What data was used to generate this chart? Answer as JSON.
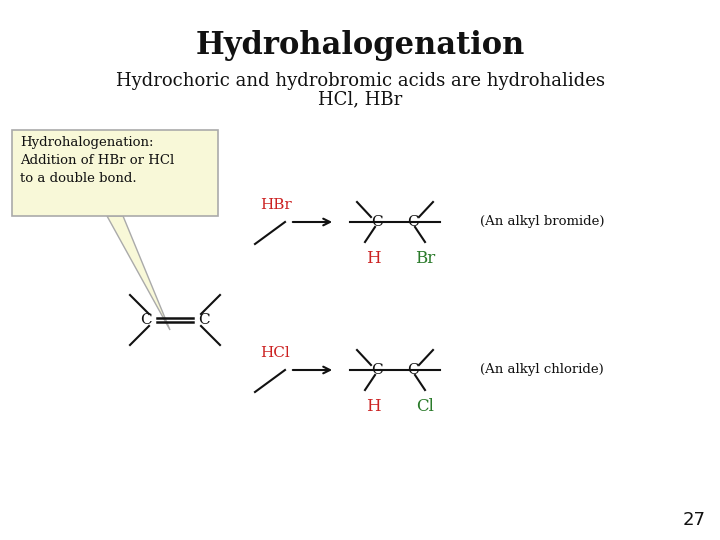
{
  "title": "Hydrohalogenation",
  "subtitle_line1": "Hydrochoric and hydrobromic acids are hydrohalides",
  "subtitle_line2": "HCl, HBr",
  "background_color": "#ffffff",
  "title_fontsize": 22,
  "subtitle_fontsize": 13,
  "page_number": "27",
  "box_text": "Hydrohalogenation:\nAddition of HBr or HCl\nto a double bond.",
  "box_facecolor": "#f8f8d8",
  "box_edgecolor": "#aaaaaa",
  "red_color": "#cc2222",
  "green_color": "#2a7a2a",
  "black_color": "#111111",
  "gray_color": "#999999"
}
